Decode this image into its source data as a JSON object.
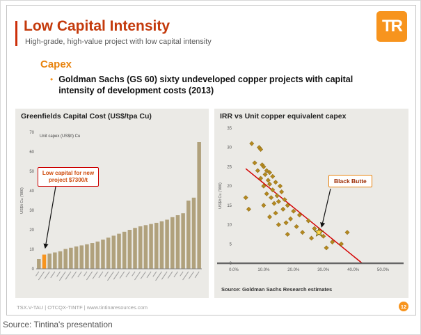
{
  "page": {
    "caption": "Source: Tintina's presentation"
  },
  "slide": {
    "title": "Low Capital Intensity",
    "subtitle": "High-grade, high-value project with low capital intensity",
    "logo_text": "TR",
    "section_heading": "Capex",
    "bullet_marker": "•",
    "bullet": "Goldman Sachs (GS 60) sixty undeveloped copper projects with capital intensity of development costs (2013)",
    "footer": {
      "left": "TSX.V-TAU | OTCQX-TINTF | www.tintinaresources.com",
      "page_number": "12"
    },
    "colors": {
      "accent_orange": "#f7941e",
      "title_red": "#c43a0c",
      "bar_tan": "#b0a17c",
      "bar_highlight": "#f7941e",
      "scatter_point": "#b5891f",
      "scatter_edge": "#8a6914",
      "trendline_red": "#d40000",
      "star_fill": "#ffd84d",
      "star_edge": "#6b5a00"
    }
  },
  "chart_data": [
    {
      "type": "bar",
      "title": "Greenfields Capital Cost (US$/tpa Cu)",
      "legend": "Unit capex (US$/t) Cu",
      "ylabel": "US$/t Cu ('000)",
      "ylim": [
        0,
        70
      ],
      "yticks": [
        0,
        10,
        20,
        30,
        40,
        50,
        60,
        70
      ],
      "values": [
        5.0,
        7.3,
        7.8,
        8.4,
        9.0,
        10.2,
        10.8,
        11.5,
        12.0,
        12.6,
        13.2,
        14.0,
        15.0,
        16.0,
        17.0,
        18.0,
        19.0,
        20.0,
        21.0,
        21.8,
        22.4,
        23.0,
        23.6,
        24.4,
        25.2,
        26.5,
        27.5,
        28.5,
        35.0,
        36.5,
        65.0
      ],
      "highlight_index": 1,
      "annotation": "Low capital for new project $7300/t"
    },
    {
      "type": "scatter",
      "title": "IRR vs Unit copper equivalent capex",
      "ylabel": "US$/t Cu ('000)",
      "xlim": [
        0,
        55
      ],
      "ylim": [
        0,
        35
      ],
      "yticks": [
        0,
        5,
        10,
        15,
        20,
        25,
        30,
        35
      ],
      "xticks": [
        0,
        10,
        20,
        30,
        40,
        50
      ],
      "xtick_labels": [
        "0.0%",
        "10.0%",
        "20.0%",
        "30.0%",
        "40.0%",
        "50.0%"
      ],
      "points": [
        [
          6,
          31
        ],
        [
          8.5,
          30
        ],
        [
          9,
          29.5
        ],
        [
          7,
          26
        ],
        [
          9.5,
          25.5
        ],
        [
          10,
          25
        ],
        [
          8,
          24
        ],
        [
          11,
          24
        ],
        [
          12,
          23.5
        ],
        [
          10.5,
          23
        ],
        [
          13,
          22.5
        ],
        [
          9,
          22
        ],
        [
          11.5,
          21.5
        ],
        [
          14,
          21
        ],
        [
          12,
          20.5
        ],
        [
          10,
          20
        ],
        [
          15.5,
          20
        ],
        [
          13,
          19
        ],
        [
          16,
          18.5
        ],
        [
          11,
          18
        ],
        [
          14.5,
          17.5
        ],
        [
          12.5,
          17
        ],
        [
          17,
          16.5
        ],
        [
          15,
          16
        ],
        [
          13.5,
          15.5
        ],
        [
          18,
          15
        ],
        [
          10,
          15
        ],
        [
          16.5,
          14
        ],
        [
          20,
          13.5
        ],
        [
          14,
          13
        ],
        [
          22,
          12.5
        ],
        [
          12,
          12
        ],
        [
          19,
          11.5
        ],
        [
          25,
          11
        ],
        [
          17.5,
          10.5
        ],
        [
          15,
          10
        ],
        [
          21,
          9.5
        ],
        [
          27,
          9
        ],
        [
          23,
          8
        ],
        [
          18,
          7.5
        ],
        [
          30,
          7
        ],
        [
          26,
          6.5
        ],
        [
          33,
          5.5
        ],
        [
          36,
          5
        ],
        [
          31,
          4
        ],
        [
          5,
          14
        ],
        [
          4,
          17
        ],
        [
          38,
          8
        ]
      ],
      "star_point": [
        28.5,
        8
      ],
      "star_label": "Black Butte",
      "trendline": {
        "x1": 4,
        "y1": 24.5,
        "x2": 43,
        "y2": 0
      },
      "source": "Source: Goldman Sachs Research estimates"
    }
  ]
}
